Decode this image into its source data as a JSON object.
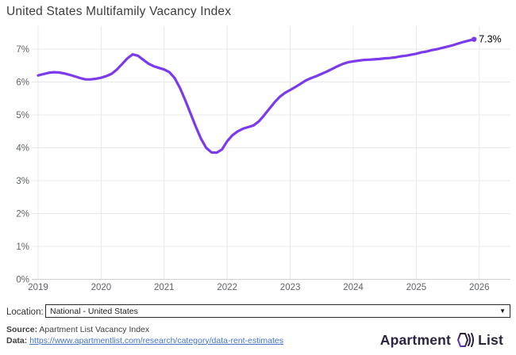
{
  "title": "United States Multifamily Vacancy Index",
  "chart_data": {
    "type": "line",
    "title": "United States Multifamily Vacancy Index",
    "x_ticks": [
      "2019",
      "2020",
      "2021",
      "2022",
      "2023",
      "2024",
      "2025",
      "2026"
    ],
    "y_ticks": [
      "0%",
      "1%",
      "2%",
      "3%",
      "4%",
      "5%",
      "6%",
      "7%"
    ],
    "ylim": [
      0,
      7.5
    ],
    "xlim": [
      2019,
      2026.45
    ],
    "grid": true,
    "legend_position": "none",
    "end_label": "7.3%",
    "series": [
      {
        "name": "National - United States",
        "color": "#7c3aed",
        "start_year": 2019,
        "points_per_year": 12,
        "values": [
          6.2,
          6.24,
          6.28,
          6.3,
          6.29,
          6.26,
          6.22,
          6.17,
          6.12,
          6.08,
          6.08,
          6.1,
          6.13,
          6.18,
          6.25,
          6.38,
          6.55,
          6.72,
          6.84,
          6.8,
          6.68,
          6.56,
          6.48,
          6.43,
          6.38,
          6.3,
          6.12,
          5.82,
          5.45,
          5.05,
          4.65,
          4.28,
          4.0,
          3.86,
          3.85,
          3.95,
          4.2,
          4.38,
          4.5,
          4.58,
          4.63,
          4.68,
          4.8,
          4.98,
          5.18,
          5.38,
          5.55,
          5.67,
          5.76,
          5.85,
          5.95,
          6.05,
          6.12,
          6.18,
          6.25,
          6.32,
          6.4,
          6.48,
          6.55,
          6.6,
          6.63,
          6.65,
          6.67,
          6.68,
          6.69,
          6.7,
          6.72,
          6.73,
          6.75,
          6.78,
          6.8,
          6.83,
          6.86,
          6.9,
          6.93,
          6.97,
          7.0,
          7.04,
          7.08,
          7.12,
          7.17,
          7.22,
          7.26,
          7.3
        ]
      }
    ]
  },
  "controls": {
    "location_label": "Location:",
    "location_value": "National - United States",
    "caret": "▼"
  },
  "footer": {
    "source_label": "Source:",
    "source_text": " Apartment List Vacancy Index",
    "data_label": "Data:",
    "data_link_text": "https://www.apartmentlist.com/research/category/data-rent-estimates"
  },
  "branding": {
    "wordmark_left": "Apartment",
    "wordmark_right": "List",
    "icon": "apartment-list-house-icon"
  },
  "colors": {
    "line": "#7c3aed",
    "grid": "#e8e8e8",
    "axis": "#cfcfcf",
    "tick_text": "#5f6368",
    "title_text": "#3d3d3d",
    "link": "#4472c4",
    "brand_text": "#2d2342",
    "end_label_text": "#000000"
  }
}
